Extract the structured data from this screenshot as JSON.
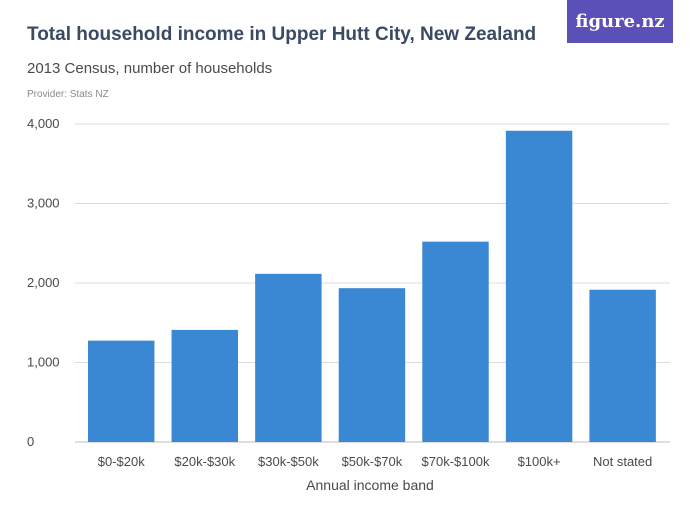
{
  "header": {
    "title": "Total household income in Upper Hutt City, New Zealand",
    "subtitle": "2013 Census, number of households",
    "provider": "Provider: Stats NZ",
    "brand": "figure.nz"
  },
  "chart_data": {
    "type": "bar",
    "categories": [
      "$0-$20k",
      "$20k-$30k",
      "$30k-$50k",
      "$50k-$70k",
      "$70k-$100k",
      "$100k+",
      "Not stated"
    ],
    "values": [
      1275,
      1410,
      2115,
      1935,
      2520,
      3915,
      1915
    ],
    "xlabel": "Annual income band",
    "ylabel": "",
    "ylim": [
      0,
      4000
    ],
    "yticks": [
      0,
      1000,
      2000,
      3000,
      4000
    ],
    "ytick_labels": [
      "0",
      "1,000",
      "2,000",
      "3,000",
      "4,000"
    ],
    "grid": true,
    "bar_color": "#3a88d4"
  }
}
